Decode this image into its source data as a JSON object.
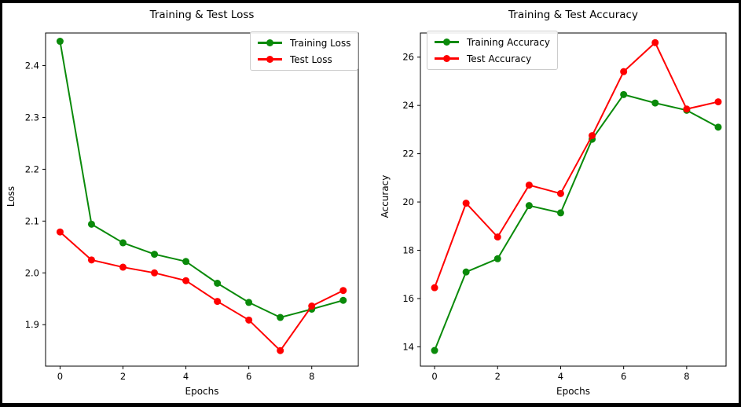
{
  "figure": {
    "background": "#ffffff",
    "border_color": "#000000"
  },
  "chart_data": [
    {
      "type": "line",
      "title": "Training & Test Loss",
      "xlabel": "Epochs",
      "ylabel": "Loss",
      "x": [
        0,
        1,
        2,
        3,
        4,
        5,
        6,
        7,
        8,
        9
      ],
      "series": [
        {
          "name": "Training Loss",
          "color": "#0a8a0a",
          "values": [
            2.447,
            2.094,
            2.058,
            2.036,
            2.022,
            1.98,
            1.943,
            1.914,
            1.93,
            1.947
          ]
        },
        {
          "name": "Test Loss",
          "color": "#ff0000",
          "values": [
            2.079,
            2.025,
            2.011,
            2.0,
            1.985,
            1.945,
            1.909,
            1.85,
            1.936,
            1.966
          ]
        }
      ],
      "xlim": [
        -0.46,
        9.48
      ],
      "ylim": [
        1.82,
        2.463
      ],
      "xtick_labels": [
        "0",
        "2",
        "4",
        "6",
        "8"
      ],
      "ytick_labels": [
        "1.9",
        "2.0",
        "2.1",
        "2.2",
        "2.3",
        "2.4"
      ],
      "legend_position": "upper-right",
      "grid": false
    },
    {
      "type": "line",
      "title": "Training & Test Accuracy",
      "xlabel": "Epochs",
      "ylabel": "Accuracy",
      "x": [
        0,
        1,
        2,
        3,
        4,
        5,
        6,
        7,
        8,
        9
      ],
      "series": [
        {
          "name": "Training Accuracy",
          "color": "#0a8a0a",
          "values": [
            13.85,
            17.1,
            17.65,
            19.85,
            19.55,
            22.6,
            24.45,
            24.1,
            23.8,
            23.1
          ]
        },
        {
          "name": "Test Accuracy",
          "color": "#ff0000",
          "values": [
            16.45,
            19.95,
            18.55,
            20.7,
            20.35,
            22.75,
            25.4,
            26.6,
            23.85,
            24.15
          ]
        }
      ],
      "xlim": [
        -0.45,
        9.25
      ],
      "ylim": [
        13.2,
        27.0
      ],
      "xtick_labels": [
        "0",
        "2",
        "4",
        "6",
        "8"
      ],
      "ytick_labels": [
        "14",
        "16",
        "18",
        "20",
        "22",
        "24",
        "26"
      ],
      "legend_position": "upper-left",
      "grid": false
    }
  ]
}
